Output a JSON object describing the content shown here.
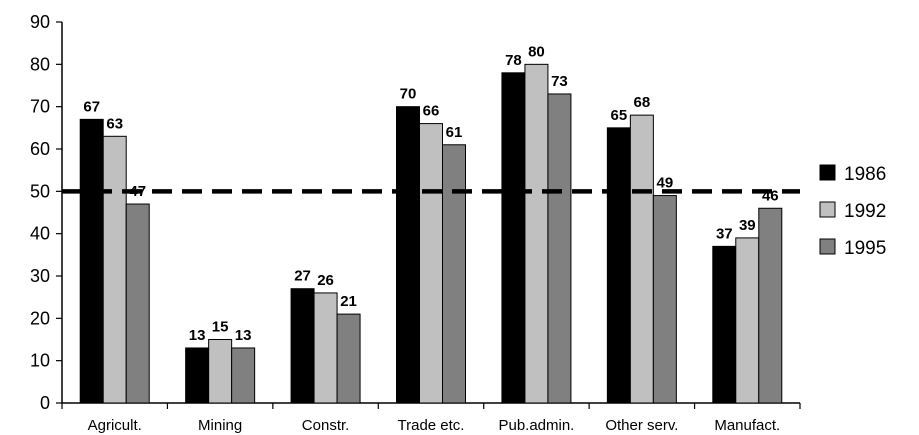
{
  "chart_data": {
    "type": "bar",
    "categories": [
      "Agricult.",
      "Mining",
      "Constr.",
      "Trade etc.",
      "Pub.admin.",
      "Other serv.",
      "Manufact."
    ],
    "series": [
      {
        "name": "1986",
        "values": [
          67,
          13,
          27,
          70,
          78,
          65,
          37
        ],
        "color": "#000000"
      },
      {
        "name": "1992",
        "values": [
          63,
          15,
          26,
          66,
          80,
          68,
          39
        ],
        "color": "#c0c0c0"
      },
      {
        "name": "1995",
        "values": [
          47,
          13,
          21,
          61,
          73,
          49,
          46
        ],
        "color": "#808080"
      }
    ],
    "ylim": [
      0,
      90
    ],
    "yticks": [
      0,
      10,
      20,
      30,
      40,
      50,
      60,
      70,
      80,
      90
    ],
    "reference_line": {
      "y": 50,
      "style": "dashed",
      "color": "#000000"
    },
    "title": "",
    "xlabel": "",
    "ylabel": "",
    "legend_position": "right",
    "grid": false
  }
}
